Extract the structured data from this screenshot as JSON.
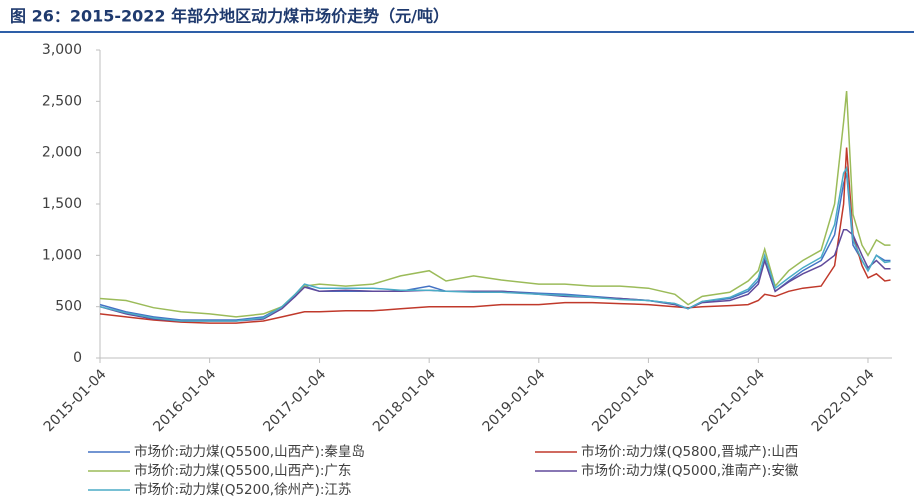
{
  "chart_data": {
    "type": "line",
    "title": "图 26：2015-2022 年部分地区动力煤市场价走势（元/吨）",
    "x": [
      "2015-01-04",
      "2015-04-01",
      "2015-07-01",
      "2015-10-01",
      "2016-01-04",
      "2016-04-01",
      "2016-07-01",
      "2016-09-01",
      "2016-10-15",
      "2016-11-15",
      "2017-01-04",
      "2017-04-01",
      "2017-07-01",
      "2017-10-01",
      "2018-01-04",
      "2018-03-01",
      "2018-06-01",
      "2018-09-01",
      "2019-01-04",
      "2019-04-01",
      "2019-07-01",
      "2019-10-01",
      "2020-01-04",
      "2020-04-01",
      "2020-05-15",
      "2020-07-01",
      "2020-10-01",
      "2020-12-01",
      "2021-01-04",
      "2021-01-25",
      "2021-03-01",
      "2021-04-15",
      "2021-06-01",
      "2021-08-01",
      "2021-09-15",
      "2021-10-15",
      "2021-10-25",
      "2021-11-15",
      "2021-12-15",
      "2022-01-04",
      "2022-02-01",
      "2022-03-01",
      "2022-03-20"
    ],
    "xlim": [
      "2015-01-04",
      "2022-03-25"
    ],
    "xticks": [
      "2015-01-04",
      "2016-01-04",
      "2017-01-04",
      "2018-01-04",
      "2019-01-04",
      "2020-01-04",
      "2021-01-04",
      "2022-01-04"
    ],
    "ylim": [
      0,
      3000
    ],
    "yticks": [
      0,
      500,
      {
        "value": 1000,
        "label": "1,000"
      },
      {
        "value": 1500,
        "label": "1,500"
      },
      {
        "value": 2000,
        "label": "2,000"
      },
      {
        "value": 2500,
        "label": "2,500"
      },
      {
        "value": 3000,
        "label": "3,000"
      }
    ],
    "series": [
      {
        "name": "市场价:动力煤(Q5500,山西产):秦皇岛",
        "color": "#4472c4",
        "values": [
          520,
          450,
          400,
          370,
          370,
          370,
          400,
          500,
          600,
          700,
          650,
          650,
          650,
          650,
          700,
          650,
          650,
          650,
          630,
          620,
          600,
          580,
          560,
          530,
          480,
          550,
          580,
          650,
          750,
          950,
          650,
          750,
          850,
          950,
          1200,
          1700,
          1800,
          1100,
          950,
          850,
          1000,
          950,
          950
        ]
      },
      {
        "name": "市场价:动力煤(Q5800,晋城产):山西",
        "color": "#c0392b",
        "values": [
          430,
          400,
          370,
          350,
          340,
          340,
          360,
          400,
          430,
          450,
          450,
          460,
          460,
          480,
          500,
          500,
          500,
          520,
          520,
          540,
          540,
          530,
          520,
          500,
          490,
          500,
          510,
          520,
          560,
          620,
          600,
          650,
          680,
          700,
          900,
          1500,
          2050,
          1200,
          900,
          780,
          820,
          750,
          760
        ]
      },
      {
        "name": "市场价:动力煤(Q5500,山西产):广东",
        "color": "#9bbb59",
        "values": [
          580,
          560,
          490,
          450,
          430,
          400,
          430,
          500,
          620,
          700,
          720,
          700,
          720,
          800,
          850,
          750,
          800,
          760,
          720,
          720,
          700,
          700,
          680,
          620,
          520,
          600,
          640,
          750,
          850,
          1060,
          700,
          850,
          950,
          1050,
          1500,
          2300,
          2600,
          1400,
          1100,
          1000,
          1150,
          1100,
          1100
        ]
      },
      {
        "name": "市场价:动力煤(Q5000,淮南产):安徽",
        "color": "#604a9b",
        "values": [
          500,
          430,
          380,
          360,
          360,
          360,
          380,
          480,
          600,
          690,
          650,
          660,
          650,
          650,
          660,
          650,
          650,
          650,
          620,
          600,
          590,
          580,
          560,
          520,
          480,
          540,
          560,
          620,
          720,
          950,
          650,
          740,
          820,
          900,
          1000,
          1250,
          1250,
          1200,
          1000,
          880,
          950,
          870,
          870
        ]
      },
      {
        "name": "市场价:动力煤(Q5200,徐州产):江苏",
        "color": "#4bacc6",
        "values": [
          500,
          440,
          390,
          360,
          360,
          360,
          390,
          500,
          620,
          720,
          680,
          680,
          680,
          660,
          660,
          650,
          640,
          640,
          620,
          610,
          590,
          570,
          560,
          530,
          480,
          550,
          590,
          670,
          780,
          1000,
          680,
          780,
          880,
          980,
          1300,
          1800,
          1850,
          1150,
          950,
          850,
          1000,
          930,
          940
        ]
      }
    ]
  }
}
